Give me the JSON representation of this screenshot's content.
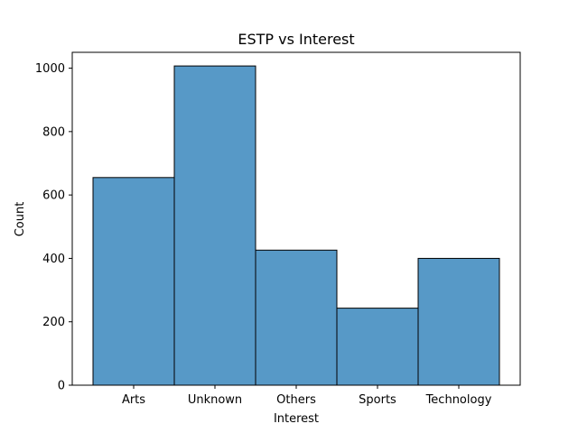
{
  "chart_data": {
    "type": "bar",
    "title": "ESTP vs Interest",
    "xlabel": "Interest",
    "ylabel": "Count",
    "categories": [
      "Arts",
      "Unknown",
      "Others",
      "Sports",
      "Technology"
    ],
    "values": [
      655,
      1007,
      426,
      243,
      400
    ],
    "ylim": [
      0,
      1050
    ],
    "yticks": [
      0,
      200,
      400,
      600,
      800,
      1000
    ],
    "bar_color": "#5799C7",
    "edge_color": "#000000",
    "grid": false,
    "legend": "none"
  }
}
